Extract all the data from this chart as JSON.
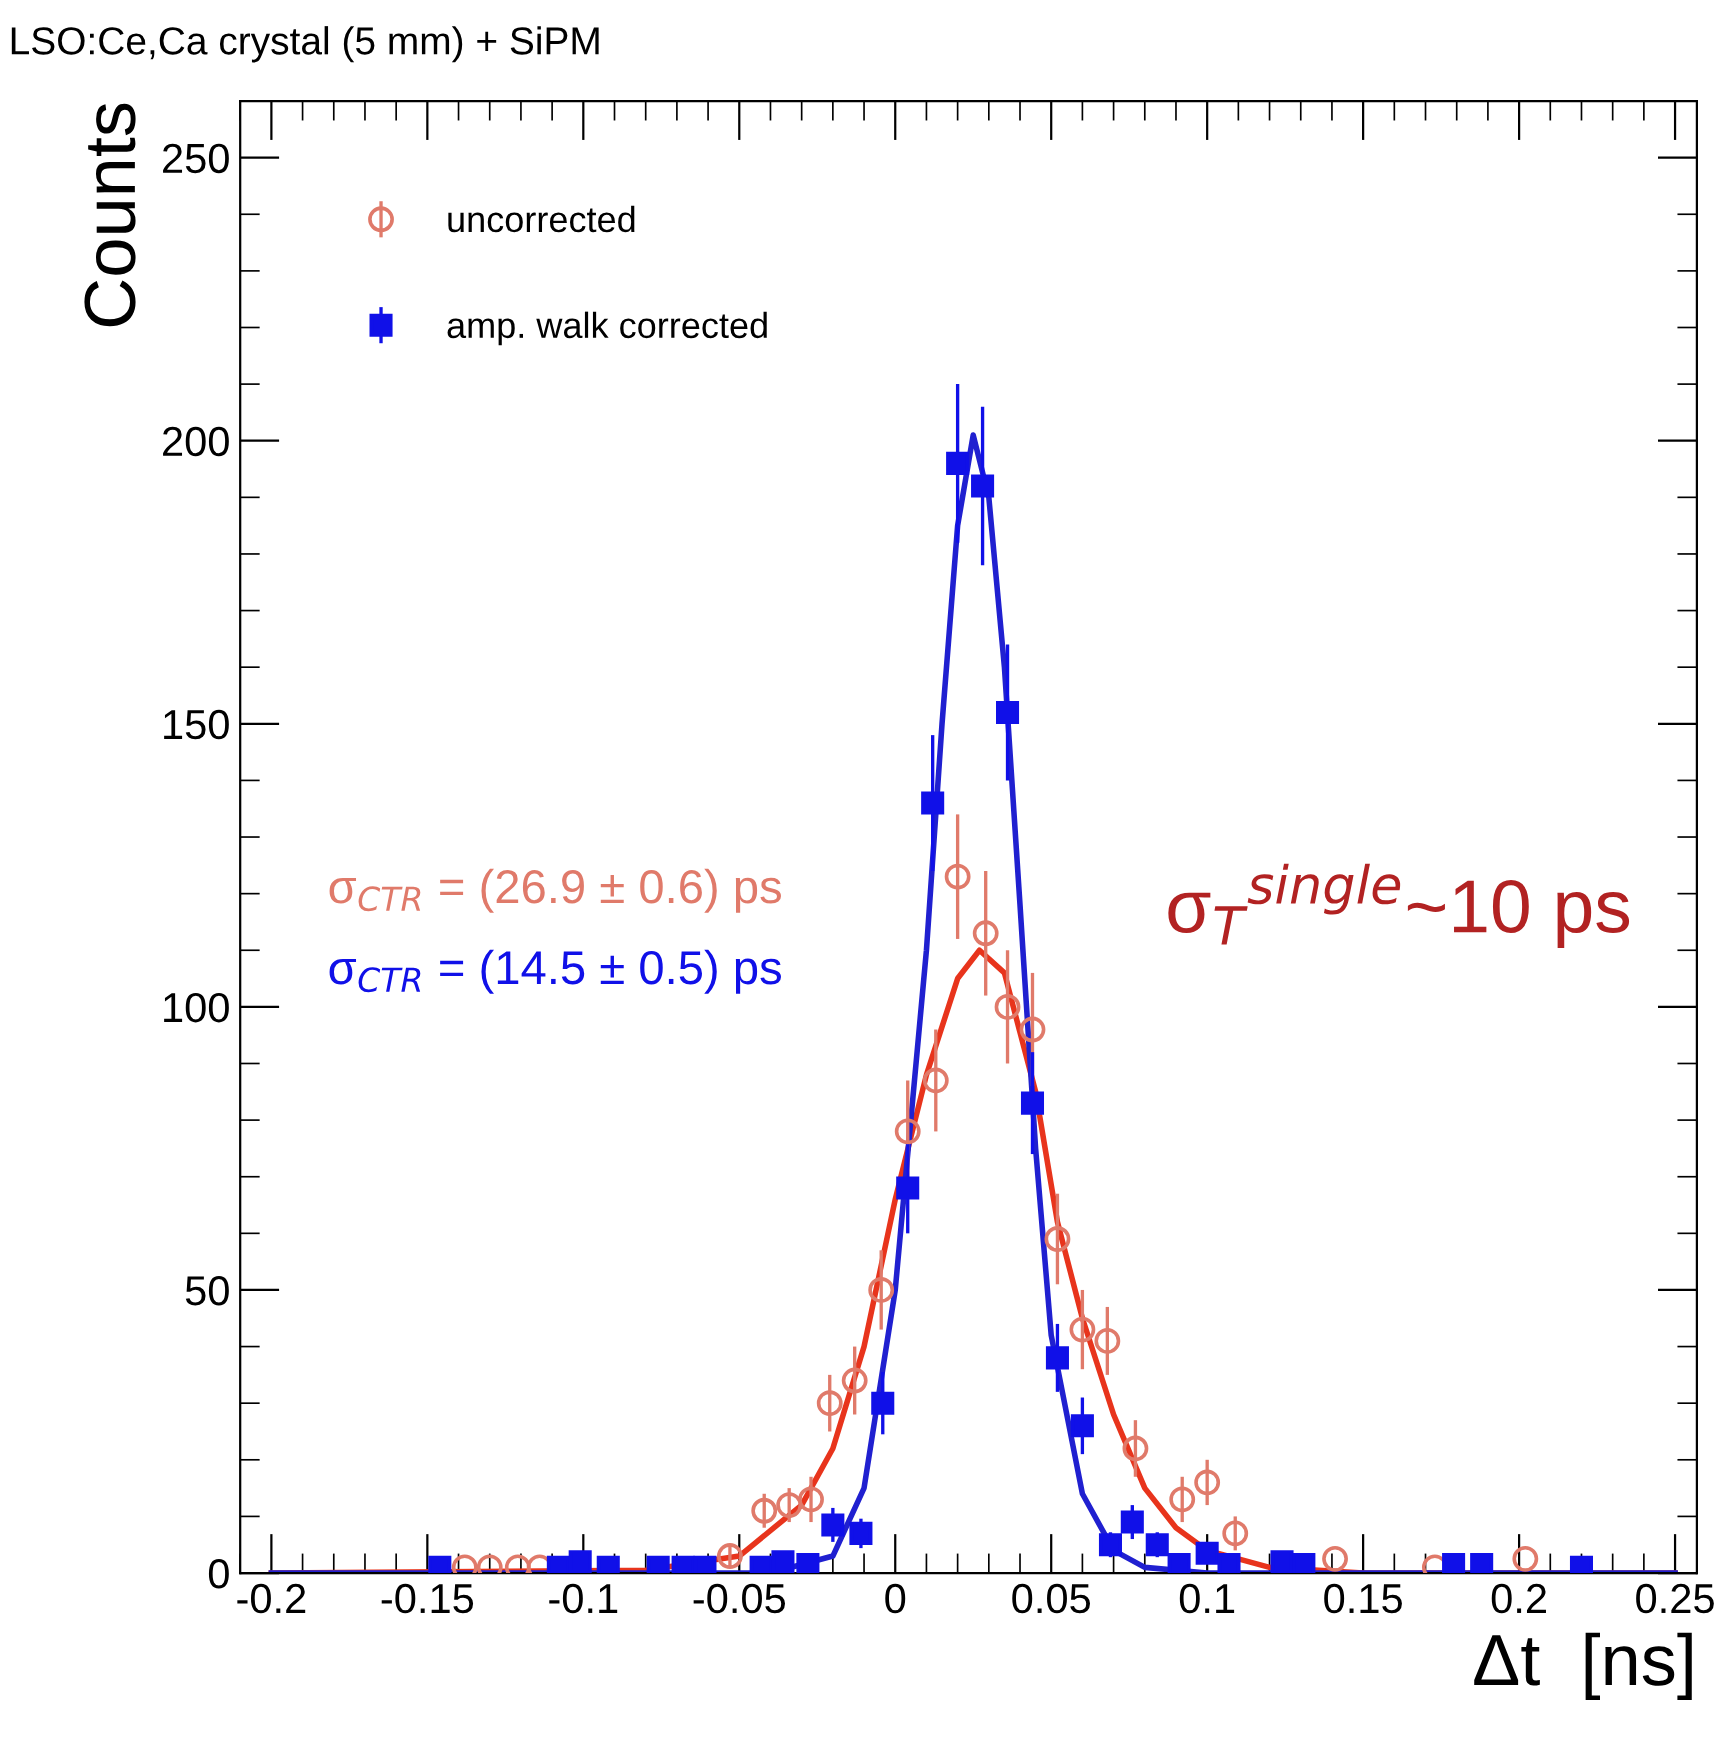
{
  "chart_data": {
    "type": "scatter",
    "title": "LSO:Ce,Ca crystal (5 mm) + SiPM",
    "xlabel": "Δt  [ns]",
    "ylabel": "Counts",
    "xlim": [
      -0.21,
      0.257
    ],
    "xticks": [
      -0.2,
      -0.15,
      -0.1,
      -0.05,
      0,
      0.05,
      0.1,
      0.15,
      0.2,
      0.25
    ],
    "ylim": [
      0,
      260
    ],
    "yticks": [
      0,
      50,
      100,
      150,
      200,
      250
    ],
    "grid": false,
    "legend": "top left",
    "annotations": [
      "σ$_{CTR}$ = (26.9 ± 0.6) ps",
      "σ$_{CTR}$ = (14.5 ± 0.5) ps",
      "σ$_{T}$$^{single}$~10 ps"
    ],
    "series": [
      {
        "name": "uncorrected",
        "marker": "circle",
        "color": "#e07a6a",
        "x": [
          -0.138,
          -0.13,
          -0.121,
          -0.114,
          -0.053,
          -0.042,
          -0.034,
          -0.027,
          -0.021,
          -0.013,
          -0.0045,
          0.004,
          0.013,
          0.02,
          0.029,
          0.036,
          0.044,
          0.052,
          0.06,
          0.068,
          0.077,
          0.092,
          0.1,
          0.109,
          0.141,
          0.173,
          0.202
        ],
        "values": [
          1,
          1,
          1,
          1,
          3,
          11,
          12,
          13,
          30,
          34,
          50,
          78,
          87,
          123,
          113,
          100,
          96,
          59,
          43,
          41,
          22,
          13,
          16,
          7,
          2.5,
          1,
          2.5
        ],
        "errors": [
          null,
          null,
          null,
          null,
          2,
          3,
          3,
          4,
          5,
          6,
          7,
          9,
          9,
          11,
          11,
          10,
          10,
          8,
          7,
          6,
          5,
          4,
          4,
          3,
          null,
          null,
          null
        ]
      },
      {
        "name": "amp. walk corrected",
        "marker": "square",
        "color": "#1010e8",
        "x": [
          -0.146,
          -0.108,
          -0.101,
          -0.092,
          -0.076,
          -0.068,
          -0.061,
          -0.043,
          -0.036,
          -0.028,
          -0.02,
          -0.011,
          -0.004,
          0.004,
          0.012,
          0.02,
          0.028,
          0.036,
          0.044,
          0.052,
          0.06,
          0.069,
          0.076,
          0.084,
          0.091,
          0.1,
          0.107,
          0.124,
          0.131,
          0.179,
          0.188,
          0.22
        ],
        "values": [
          1,
          1,
          2,
          1,
          1,
          1,
          1,
          1,
          2,
          1.5,
          8.5,
          7,
          30,
          68,
          136,
          196,
          192,
          152,
          83,
          38,
          26,
          5,
          9,
          5,
          1.5,
          3.5,
          1.5,
          2,
          1.5,
          1.5,
          1.5,
          1
        ],
        "errors": [
          1,
          1,
          1.4,
          1,
          1,
          1,
          1,
          1,
          1.4,
          1.2,
          3,
          2.6,
          5.5,
          8,
          12,
          14,
          14,
          12,
          9,
          6,
          5,
          2.2,
          3,
          2.2,
          1.2,
          1.9,
          1.2,
          1.4,
          1.2,
          1.2,
          1.2,
          1
        ]
      },
      {
        "type": "line",
        "color": "#e8341c",
        "x": [
          -0.2,
          -0.08,
          -0.05,
          -0.03,
          -0.02,
          -0.01,
          0,
          0.01,
          0.02,
          0.027,
          0.035,
          0.045,
          0.052,
          0.06,
          0.07,
          0.08,
          0.09,
          0.1,
          0.12,
          0.15,
          0.25
        ],
        "values": [
          0,
          0.5,
          3,
          12,
          22,
          40,
          66,
          88,
          105,
          110,
          106,
          85,
          62,
          45,
          28,
          15,
          8,
          4,
          1,
          0,
          0
        ]
      },
      {
        "type": "line",
        "color": "#2020d0",
        "x": [
          -0.2,
          -0.04,
          -0.02,
          -0.01,
          0,
          0.01,
          0.015,
          0.02,
          0.025,
          0.03,
          0.035,
          0.04,
          0.045,
          0.05,
          0.06,
          0.07,
          0.08,
          0.1,
          0.25
        ],
        "values": [
          0,
          0,
          3,
          15,
          50,
          110,
          150,
          185,
          201,
          190,
          160,
          118,
          75,
          42,
          14,
          4,
          1,
          0,
          0
        ]
      }
    ]
  }
}
